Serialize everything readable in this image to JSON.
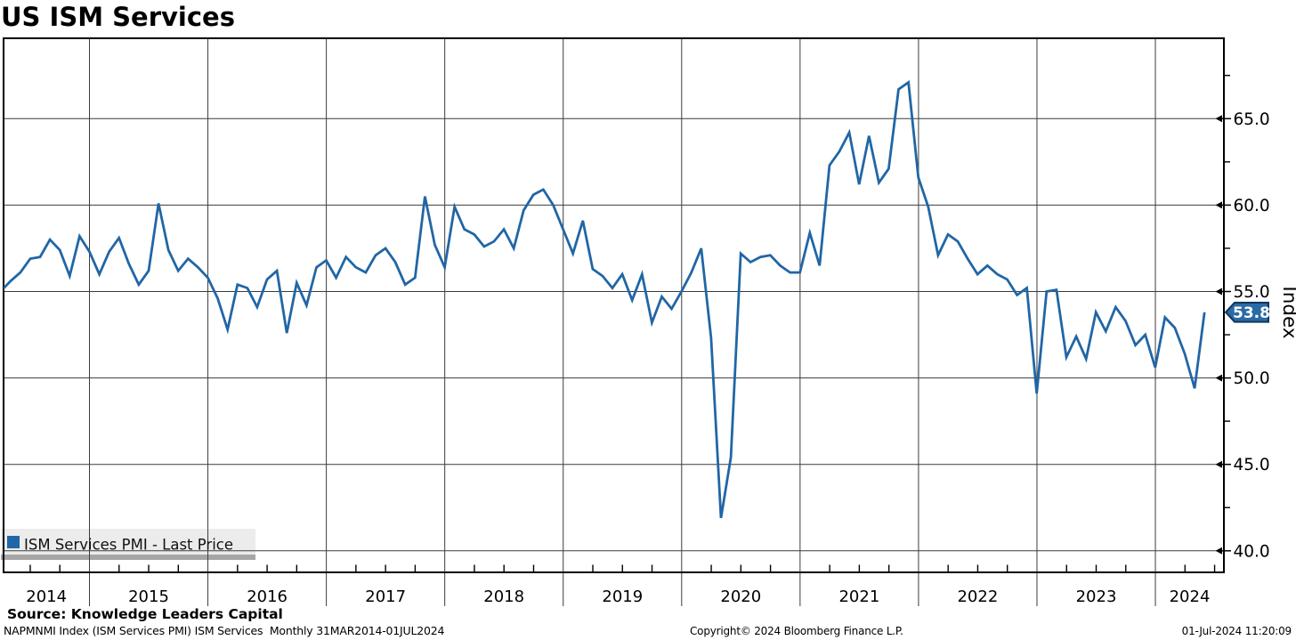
{
  "header": {
    "title": "US ISM Services"
  },
  "legend": {
    "label": "ISM Services PMI - Last Price"
  },
  "y_axis": {
    "title": "Index",
    "ticks": [
      "65.0",
      "60.0",
      "55.0",
      "50.0",
      "45.0",
      "40.0"
    ]
  },
  "x_axis": {
    "years": [
      "2014",
      "2015",
      "2016",
      "2017",
      "2018",
      "2019",
      "2020",
      "2021",
      "2022",
      "2023",
      "2024"
    ]
  },
  "last_price_badge": {
    "value": "53.8"
  },
  "footer": {
    "source": "Source: Knowledge Leaders Capital",
    "security_info": "NAPMNMI Index (ISM Services PMI) ISM Services  Monthly 31MAR2014-01JUL2024",
    "copyright": "Copyright© 2024 Bloomberg Finance L.P.",
    "timestamp": "01-Jul-2024 11:20:09"
  },
  "colors": {
    "line": "#2166a5",
    "badge_fill": "#2a6ba6",
    "badge_border": "#12355b",
    "legend_bg": "#ececec",
    "legend_shadow": "#a6a6a6",
    "grid": "#3c3c3c",
    "axis": "#000000"
  },
  "chart_data": {
    "type": "line",
    "title": "US ISM Services",
    "ylabel": "Index",
    "ylim": [
      39.2,
      69.8
    ],
    "yticks": [
      40,
      45,
      50,
      55,
      60,
      65
    ],
    "grid": "on",
    "legend_position": "bottom-left",
    "frequency": "monthly",
    "x_start": "2014-03",
    "x_end": "2024-05",
    "last_value": 53.8,
    "series": [
      {
        "name": "ISM Services PMI - Last Price",
        "color": "#2166a5",
        "values": [
          55.0,
          55.6,
          56.1,
          56.9,
          57.0,
          58.0,
          57.4,
          55.9,
          58.2,
          57.3,
          56.0,
          57.3,
          58.1,
          56.6,
          55.4,
          56.2,
          60.1,
          57.4,
          56.2,
          56.9,
          56.4,
          55.8,
          54.6,
          52.8,
          55.4,
          55.2,
          54.1,
          55.7,
          56.2,
          52.6,
          55.5,
          54.2,
          56.4,
          56.8,
          55.8,
          57.0,
          56.4,
          56.1,
          57.1,
          57.5,
          56.7,
          55.4,
          55.8,
          60.5,
          57.7,
          56.4,
          59.9,
          58.6,
          58.3,
          57.6,
          57.9,
          58.6,
          57.5,
          59.7,
          60.6,
          60.9,
          60.0,
          58.6,
          57.2,
          59.1,
          56.3,
          55.9,
          55.2,
          56.0,
          54.5,
          56.0,
          53.2,
          54.7,
          54.0,
          55.0,
          56.1,
          57.5,
          52.3,
          41.9,
          45.4,
          57.2,
          56.7,
          57.0,
          57.1,
          56.5,
          56.1,
          56.1,
          58.4,
          56.5,
          62.3,
          63.1,
          64.2,
          61.2,
          64.0,
          61.3,
          62.1,
          66.7,
          67.1,
          61.6,
          59.9,
          57.1,
          58.3,
          57.9,
          56.9,
          56.0,
          56.5,
          56.0,
          55.7,
          54.8,
          55.2,
          49.1,
          55.0,
          55.1,
          51.2,
          52.4,
          51.1,
          53.8,
          52.7,
          54.1,
          53.3,
          51.9,
          52.5,
          50.6,
          53.5,
          52.9,
          51.4,
          49.4,
          53.8
        ]
      }
    ]
  }
}
